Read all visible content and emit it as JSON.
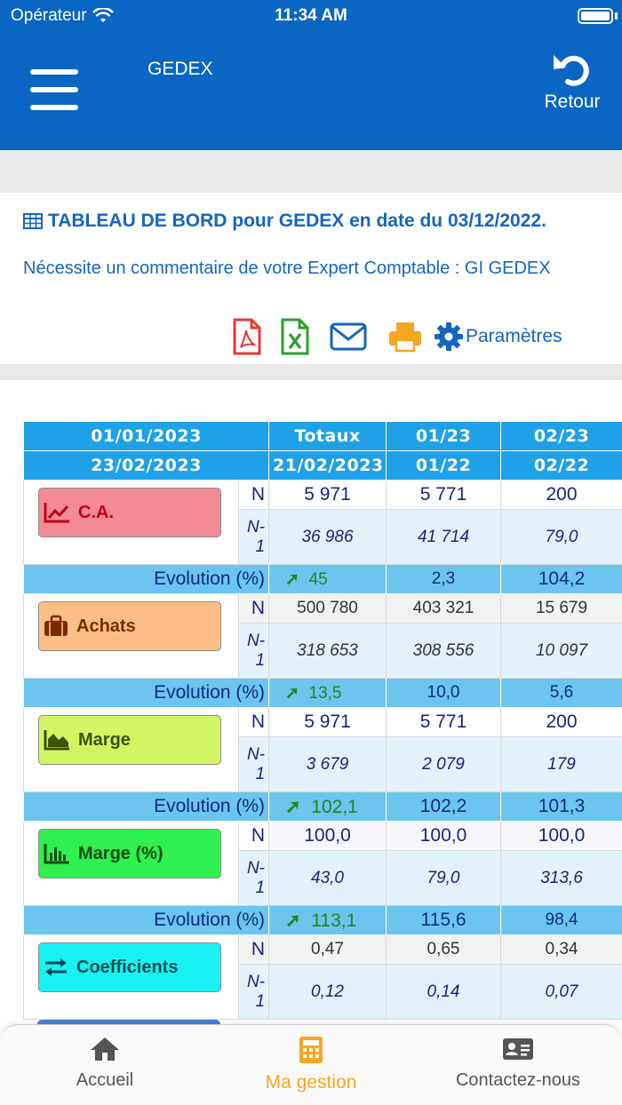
{
  "status_bar": {
    "carrier": "Opérateur",
    "time": "11:34 AM"
  },
  "nav": {
    "title": "GEDEX",
    "back_label": "Retour"
  },
  "header": {
    "title": "TABLEAU DE BORD pour GEDEX en date du 03/12/2022.",
    "comment": "Nécessite un commentaire de votre Expert Comptable : GI GEDEX",
    "params_label": "Paramètres"
  },
  "table": {
    "header1": [
      "01/01/2023",
      "Totaux",
      "01/23",
      "02/23"
    ],
    "header2": [
      "23/02/2023",
      "21/02/2023",
      "01/22",
      "02/22"
    ],
    "n_tag": "N",
    "n1_tag": "N-1",
    "evolution_label": "Evolution (%)",
    "rows": [
      {
        "label": "C.A.",
        "color": "#f48a93",
        "textcolor": "#c2001a",
        "icon": "line-chart-icon",
        "n": [
          "5 971",
          "5 771",
          "200"
        ],
        "n1": [
          "36 986",
          "41 714",
          "79,0"
        ],
        "ev": [
          "45",
          "2,3",
          "104,2"
        ]
      },
      {
        "label": "Achats",
        "color": "#fbbf86",
        "textcolor": "#7a2a00",
        "icon": "briefcase-icon",
        "n": [
          "500 780",
          "403 321",
          "15 679"
        ],
        "n1": [
          "318 653",
          "308 556",
          "10 097"
        ],
        "ev": [
          "13,5",
          "10,0",
          "5,6"
        ]
      },
      {
        "label": "Marge",
        "color": "#d3f564",
        "textcolor": "#3d5200",
        "icon": "area-chart-icon",
        "n": [
          "5 971",
          "5 771",
          "200"
        ],
        "n1": [
          "3 679",
          "2 079",
          "179"
        ],
        "ev": [
          "102,1",
          "102,2",
          "101,3"
        ]
      },
      {
        "label": "Marge (%)",
        "color": "#2ff04f",
        "textcolor": "#0b4d10",
        "icon": "bar-chart-icon",
        "n": [
          "100,0",
          "100,0",
          "100,0"
        ],
        "n1": [
          "43,0",
          "79,0",
          "313,6"
        ],
        "ev": [
          "113,1",
          "115,6",
          "98,4"
        ]
      },
      {
        "label": "Coefficients",
        "color": "#18f2f2",
        "textcolor": "#004d57",
        "icon": "exchange-icon",
        "n": [
          "0,47",
          "0,65",
          "0,34"
        ],
        "n1": [
          "0,12",
          "0,14",
          "0,07"
        ],
        "ev": []
      }
    ]
  },
  "tabbar": {
    "home": "Accueil",
    "gestion": "Ma gestion",
    "contact": "Contactez-nous"
  },
  "colors": {
    "primary": "#0a66c2",
    "accent": "#f5a623",
    "header_cell": "#1ea1e6",
    "evolution_row": "#6bc5ef"
  }
}
